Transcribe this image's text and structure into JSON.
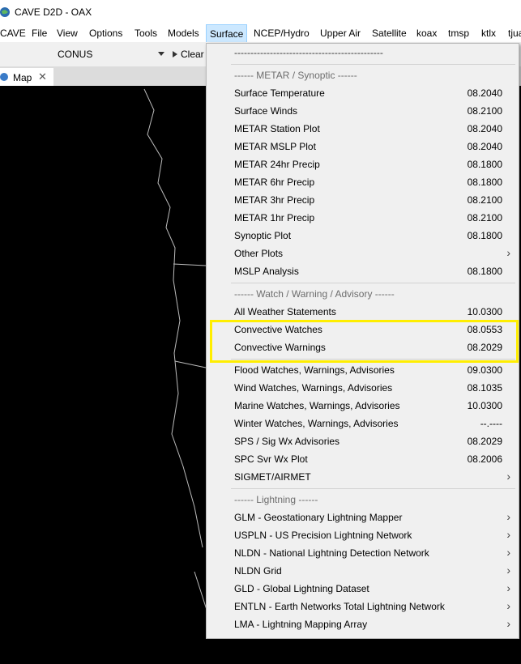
{
  "window": {
    "title": "CAVE D2D - OAX"
  },
  "menubar": [
    "CAVE",
    "File",
    "View",
    "Options",
    "Tools",
    "Models",
    "Surface",
    "NCEP/Hydro",
    "Upper Air",
    "Satellite",
    "koax",
    "tmsp",
    "ktlx",
    "tjua"
  ],
  "toolbar": {
    "scale": "CONUS",
    "clear": "Clear"
  },
  "tab": {
    "label": "Map"
  },
  "menu": {
    "tearoff": "----------------------------------------------",
    "groups": [
      {
        "header": "------ METAR / Synoptic ------",
        "items": [
          {
            "label": "Surface Temperature",
            "time": "08.2040"
          },
          {
            "label": "Surface Winds",
            "time": "08.2100"
          },
          {
            "label": "METAR Station Plot",
            "time": "08.2040"
          },
          {
            "label": "METAR MSLP Plot",
            "time": "08.2040"
          },
          {
            "label": "METAR 24hr Precip",
            "time": "08.1800"
          },
          {
            "label": "METAR 6hr Precip",
            "time": "08.1800"
          },
          {
            "label": "METAR 3hr Precip",
            "time": "08.2100"
          },
          {
            "label": "METAR 1hr Precip",
            "time": "08.2100"
          },
          {
            "label": "Synoptic Plot",
            "time": "08.1800"
          },
          {
            "label": "Other Plots",
            "submenu": true
          },
          {
            "label": "MSLP Analysis",
            "time": "08.1800"
          }
        ]
      },
      {
        "header": "------ Watch / Warning / Advisory ------",
        "items": [
          {
            "label": "All Weather Statements",
            "time": "10.0300"
          },
          {
            "label": "Convective Watches",
            "time": "08.0553"
          },
          {
            "label": "Convective Warnings",
            "time": "08.2029"
          }
        ]
      },
      {
        "items": [
          {
            "label": "Flood Watches, Warnings, Advisories",
            "time": "09.0300"
          },
          {
            "label": "Wind Watches, Warnings, Advisories",
            "time": "08.1035"
          },
          {
            "label": "Marine Watches, Warnings, Advisories",
            "time": "10.0300"
          },
          {
            "label": "Winter Watches, Warnings, Advisories",
            "time": "--.----"
          },
          {
            "label": "SPS / Sig Wx Advisories",
            "time": "08.2029"
          },
          {
            "label": "SPC Svr Wx Plot",
            "time": "08.2006"
          },
          {
            "label": "SIGMET/AIRMET",
            "submenu": true
          }
        ]
      },
      {
        "header": "------ Lightning ------",
        "items": [
          {
            "label": "GLM - Geostationary Lightning Mapper",
            "submenu": true
          },
          {
            "label": "USPLN - US Precision Lightning Network",
            "submenu": true
          },
          {
            "label": "NLDN - National Lightning Detection Network",
            "submenu": true
          },
          {
            "label": "NLDN Grid",
            "submenu": true
          },
          {
            "label": "GLD - Global Lightning Dataset",
            "submenu": true
          },
          {
            "label": "ENTLN - Earth Networks Total Lightning Network",
            "submenu": true
          },
          {
            "label": "LMA - Lightning Mapping Array",
            "submenu": true
          }
        ]
      }
    ]
  }
}
